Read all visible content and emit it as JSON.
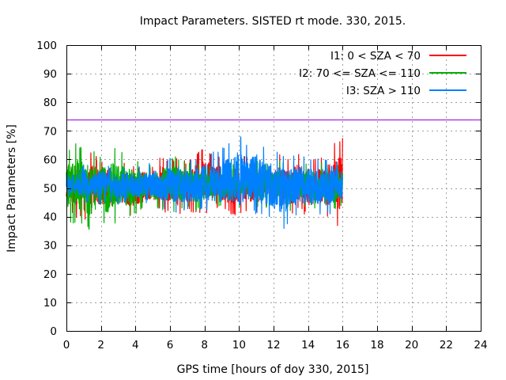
{
  "chart_data": {
    "type": "line",
    "title": "Impact Parameters. SISTED rt mode. 330, 2015.",
    "xlabel": "GPS time [hours of doy 330, 2015]",
    "ylabel": "Impact Parameters [%]",
    "xlim": [
      0,
      24
    ],
    "ylim": [
      0,
      100
    ],
    "xticks": [
      0,
      2,
      4,
      6,
      8,
      10,
      12,
      14,
      16,
      18,
      20,
      22,
      24
    ],
    "yticks": [
      0,
      10,
      20,
      30,
      40,
      50,
      60,
      70,
      80,
      90,
      100
    ],
    "grid": true,
    "legend_position": "top-right",
    "reference_line": {
      "y": 74,
      "color": "#9400d3"
    },
    "series": [
      {
        "name": "I1: 0 < SZA < 70",
        "color": "#ff0000",
        "x": [
          0.0,
          0.5,
          1.0,
          1.5,
          2.0,
          2.5,
          3.0,
          3.5,
          4.0,
          4.5,
          5.0,
          5.5,
          6.0,
          6.5,
          7.0,
          7.5,
          8.0,
          8.5,
          9.0,
          9.5,
          10.0,
          10.5,
          11.0,
          11.5,
          12.0,
          12.5,
          13.0,
          13.5,
          14.0,
          14.5,
          15.0,
          15.5,
          16.0
        ],
        "upper": [
          58,
          62,
          60,
          63,
          59,
          61,
          58,
          60,
          57,
          59,
          58,
          62,
          60,
          61,
          59,
          63,
          64,
          62,
          61,
          60,
          62,
          61,
          60,
          59,
          61,
          62,
          60,
          63,
          61,
          60,
          62,
          66,
          68
        ],
        "lower": [
          42,
          40,
          38,
          41,
          40,
          39,
          42,
          40,
          41,
          42,
          43,
          42,
          41,
          40,
          42,
          41,
          40,
          43,
          42,
          41,
          40,
          42,
          41,
          43,
          42,
          40,
          41,
          42,
          40,
          41,
          40,
          38,
          34
        ]
      },
      {
        "name": "I2: 70 <= SZA <= 110",
        "color": "#00b000",
        "x": [
          0.0,
          0.5,
          1.0,
          1.5,
          2.0,
          2.5,
          3.0,
          3.5,
          4.0,
          4.5,
          5.0,
          5.5,
          6.0,
          6.5,
          7.0,
          7.5,
          8.0,
          8.5,
          9.0,
          9.5,
          10.0,
          10.5,
          11.0,
          11.5,
          12.0,
          12.5,
          13.0,
          13.5,
          14.0,
          14.5,
          15.0,
          15.5,
          16.0
        ],
        "upper": [
          63,
          66,
          64,
          63,
          62,
          65,
          64,
          62,
          60,
          59,
          58,
          60,
          62,
          61,
          59,
          60,
          58,
          59,
          58,
          60,
          59,
          58,
          60,
          59,
          58,
          60,
          59,
          58,
          59,
          60,
          58,
          59,
          58
        ],
        "lower": [
          38,
          37,
          36,
          35,
          37,
          36,
          38,
          39,
          41,
          42,
          43,
          42,
          41,
          42,
          43,
          42,
          43,
          44,
          43,
          42,
          43,
          44,
          42,
          43,
          44,
          43,
          42,
          43,
          44,
          42,
          43,
          42,
          44
        ]
      },
      {
        "name": "I3: SZA > 110",
        "color": "#0080ff",
        "x": [
          0.0,
          0.5,
          1.0,
          1.5,
          2.0,
          2.5,
          3.0,
          3.5,
          4.0,
          4.5,
          5.0,
          5.5,
          6.0,
          6.5,
          7.0,
          7.5,
          8.0,
          8.5,
          9.0,
          9.5,
          10.0,
          10.5,
          11.0,
          11.5,
          12.0,
          12.5,
          13.0,
          13.5,
          14.0,
          14.5,
          15.0,
          15.5,
          16.0
        ],
        "upper": [
          58,
          57,
          58,
          57,
          59,
          58,
          57,
          58,
          57,
          58,
          59,
          58,
          61,
          62,
          60,
          61,
          62,
          63,
          64,
          66,
          69,
          65,
          67,
          64,
          63,
          62,
          61,
          62,
          61,
          60,
          61,
          62,
          58
        ],
        "lower": [
          44,
          45,
          44,
          45,
          44,
          45,
          44,
          45,
          44,
          45,
          44,
          43,
          42,
          41,
          42,
          41,
          42,
          41,
          40,
          41,
          38,
          40,
          41,
          39,
          38,
          35,
          39,
          41,
          40,
          41,
          40,
          41,
          44
        ]
      }
    ]
  }
}
